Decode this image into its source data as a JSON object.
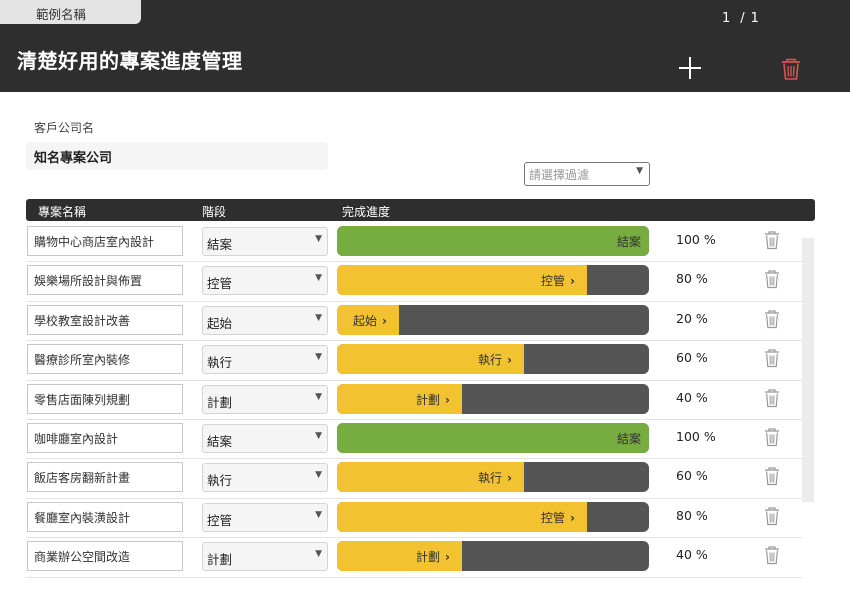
{
  "sheet_tab": {
    "label": "範例名稱"
  },
  "pager": {
    "current": "1",
    "separator": "/",
    "total": "1"
  },
  "app_title": "清楚好用的專案進度管理",
  "icons": {
    "add": "plus-icon",
    "delete_all": "trash-icon",
    "row_delete": "trash-icon",
    "dropdown": "chevron-down-icon"
  },
  "colors": {
    "header_bg": "#2e2e2e",
    "done": "#77ac40",
    "in_progress": "#f2c230",
    "remaining": "#555555",
    "delete_red": "#d9534f"
  },
  "company": {
    "label": "客戶公司名",
    "name": "知名專案公司"
  },
  "filter": {
    "placeholder": "請選擇過濾"
  },
  "table": {
    "headers": {
      "name": "專案名稱",
      "stage": "階段",
      "progress": "完成進度"
    },
    "rows": [
      {
        "name": "購物中心商店室內設計",
        "stage": "結案",
        "bar_label": "結案",
        "percent": 100,
        "percent_text": "100 %"
      },
      {
        "name": "娛樂場所設計與佈置",
        "stage": "控管",
        "bar_label": "控管",
        "percent": 80,
        "percent_text": "80 %"
      },
      {
        "name": "學校教室設計改善",
        "stage": "起始",
        "bar_label": "起始",
        "percent": 20,
        "percent_text": "20 %"
      },
      {
        "name": "醫療診所室內裝修",
        "stage": "執行",
        "bar_label": "執行",
        "percent": 60,
        "percent_text": "60 %"
      },
      {
        "name": "零售店面陳列規劃",
        "stage": "計劃",
        "bar_label": "計劃",
        "percent": 40,
        "percent_text": "40 %"
      },
      {
        "name": "咖啡廳室內設計",
        "stage": "結案",
        "bar_label": "結案",
        "percent": 100,
        "percent_text": "100 %"
      },
      {
        "name": "飯店客房翻新計畫",
        "stage": "執行",
        "bar_label": "執行",
        "percent": 60,
        "percent_text": "60 %"
      },
      {
        "name": "餐廳室內裝潢設計",
        "stage": "控管",
        "bar_label": "控管",
        "percent": 80,
        "percent_text": "80 %"
      },
      {
        "name": "商業辦公空間改造",
        "stage": "計劃",
        "bar_label": "計劃",
        "percent": 40,
        "percent_text": "40 %"
      }
    ]
  }
}
